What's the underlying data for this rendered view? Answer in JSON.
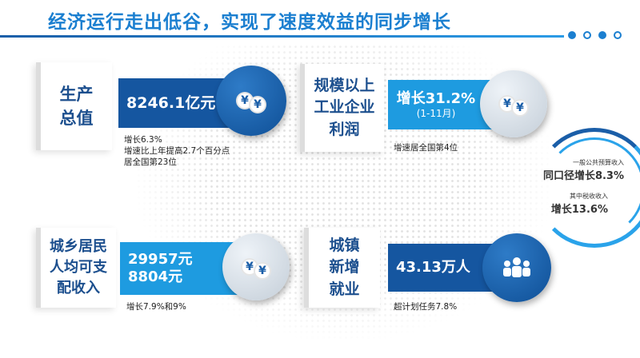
{
  "title": "经济运行走出低谷，实现了速度效益的同步增长",
  "colors": {
    "title": "#1b7fd0",
    "dark_blue": "#1556a0",
    "light_blue": "#1e9be0",
    "label": "#1c4f8e"
  },
  "panels": [
    {
      "label_lines": [
        "生产",
        "总值"
      ],
      "value_lines": [
        "8246.1亿元"
      ],
      "icon": "yen-coins-icon",
      "notes": [
        "增长6.3%",
        "增速比上年提高2.7个百分点",
        "居全国第23位"
      ]
    },
    {
      "label_lines": [
        "规模以上",
        "工业企业",
        "利润"
      ],
      "value_lines": [
        "增长31.2%",
        "(1-11月)"
      ],
      "icon": "yen-coins-icon",
      "notes": [
        "增速居全国第4位"
      ]
    },
    {
      "label_lines": [
        "城乡居民",
        "人均可支",
        "配收入"
      ],
      "value_lines": [
        "29957元",
        "8804元"
      ],
      "icon": "yen-coins-icon",
      "notes": [
        "增长7.9%和9%"
      ]
    },
    {
      "label_lines": [
        "城镇",
        "新增",
        "就业"
      ],
      "value_lines": [
        "43.13万人"
      ],
      "icon": "people-group-icon",
      "notes": [
        "超计划任务7.8%"
      ]
    }
  ],
  "ring": {
    "caption1": "一般公共预算收入",
    "value1": "同口径增长8.3%",
    "caption2": "其中税收收入",
    "value2": "增长13.6%"
  }
}
